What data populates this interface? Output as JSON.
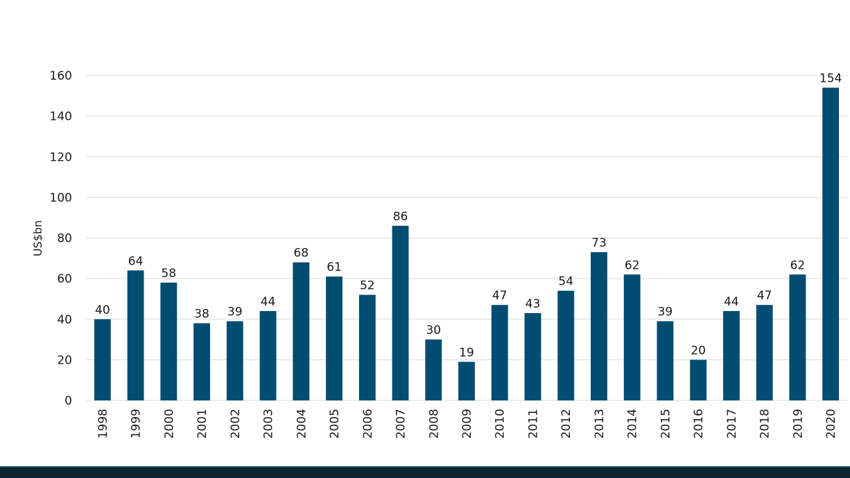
{
  "colors": {
    "bar": "#004d71",
    "grid": "#d9d9d9",
    "text": "#1a1a1a",
    "footer": "#0d2530"
  },
  "chart_data": {
    "type": "bar",
    "title": "",
    "xlabel": "",
    "ylabel": "US$bn",
    "ylim": [
      0,
      160
    ],
    "yticks": [
      0,
      20,
      40,
      60,
      80,
      100,
      120,
      140,
      160
    ],
    "grid": true,
    "legend": "none",
    "categories": [
      "1998",
      "1999",
      "2000",
      "2001",
      "2002",
      "2003",
      "2004",
      "2005",
      "2006",
      "2007",
      "2008",
      "2009",
      "2010",
      "2011",
      "2012",
      "2013",
      "2014",
      "2015",
      "2016",
      "2017",
      "2018",
      "2019",
      "2020"
    ],
    "values": [
      40,
      64,
      58,
      38,
      39,
      44,
      68,
      61,
      52,
      86,
      30,
      19,
      47,
      43,
      54,
      73,
      62,
      39,
      20,
      44,
      47,
      62,
      154
    ]
  }
}
